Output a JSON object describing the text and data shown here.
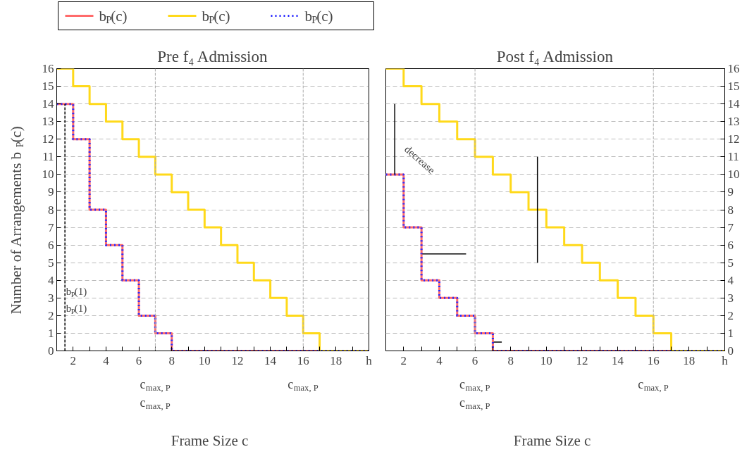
{
  "chart_data": [
    {
      "type": "step",
      "title": "Pre f₄ Admission",
      "xlabel": "Frame Size c",
      "ylabel": "Number of Arrangements b$_{P}$(c)",
      "x": [
        1,
        2,
        3,
        4,
        5,
        6,
        7,
        8,
        9,
        10,
        11,
        12,
        13,
        14,
        15,
        16,
        17,
        18,
        19,
        20
      ],
      "series": [
        {
          "name": "b$_{P}$(c)",
          "color": "#ff6b6b",
          "values": [
            14,
            12,
            8,
            6,
            4,
            2,
            1,
            0,
            0,
            0,
            0,
            0,
            0,
            0,
            0,
            0,
            0,
            0,
            null,
            null
          ]
        },
        {
          "name": "b$_{P}$(c)",
          "color": "#ffd91a",
          "values": [
            16,
            15,
            14,
            13,
            12,
            11,
            10,
            9,
            8,
            7,
            6,
            5,
            4,
            3,
            2,
            1,
            0,
            0,
            0,
            0
          ]
        },
        {
          "name": "b$_{P}$(c)",
          "color": "#2b2bff",
          "line_style": "dotted",
          "values": [
            14,
            12,
            8,
            6,
            4,
            2,
            1,
            0,
            0,
            0,
            0,
            0,
            0,
            0,
            0,
            0,
            0,
            0,
            0,
            0
          ]
        },
        {
          "type": "line",
          "color": "#000000",
          "line_style": "dashed",
          "x": [
            1.5,
            1.5
          ],
          "values": [
            0,
            14
          ]
        }
      ],
      "xlim": [
        1,
        20
      ],
      "ylim": [
        0,
        16
      ],
      "xticks": [
        {
          "value": 1,
          "label": null
        },
        2,
        {
          "value": 3,
          "label": null
        },
        4,
        {
          "value": 5,
          "label": null
        },
        6,
        {
          "value": 7,
          "label": null
        },
        8,
        {
          "value": 9,
          "label": null
        },
        10,
        {
          "value": 11,
          "label": null
        },
        12,
        {
          "value": 13,
          "label": null
        },
        14,
        {
          "value": 15,
          "label": null
        },
        16,
        {
          "value": 17,
          "label": null
        },
        18,
        {
          "value": 19,
          "label": null
        },
        {
          "value": 20,
          "label": "h"
        }
      ],
      "yticks": [
        0,
        1,
        2,
        3,
        4,
        5,
        6,
        7,
        8,
        9,
        10,
        11,
        12,
        13,
        14,
        15,
        16
      ],
      "grid": "y",
      "legend": "top left",
      "ref_lines": [
        {
          "axis": "x",
          "value": 7
        },
        {
          "axis": "x",
          "value": 16
        }
      ],
      "annotations": [
        "b$_{P}$(1)",
        "b$_{P}$(1)",
        "c$_{max, P}$",
        "c$_{max, P}$",
        "c$_{max, P}$"
      ]
    },
    {
      "type": "step",
      "title": "Post f₄ Admission",
      "xlabel": "Frame Size c",
      "x": [
        1,
        2,
        3,
        4,
        5,
        6,
        7,
        8,
        9,
        10,
        11,
        12,
        13,
        14,
        15,
        16,
        17,
        18,
        19,
        20
      ],
      "series": [
        {
          "color": "#ff6b6b",
          "values": [
            10,
            7,
            4,
            3,
            2,
            1,
            0,
            0,
            0,
            0,
            0,
            0,
            0,
            0,
            0,
            0,
            0,
            0,
            null,
            null
          ]
        },
        {
          "color": "#ffd91a",
          "values": [
            16,
            15,
            14,
            13,
            12,
            11,
            10,
            9,
            8,
            7,
            6,
            5,
            4,
            3,
            2,
            1,
            0,
            0,
            0,
            0
          ]
        },
        {
          "color": "#2b2bff",
          "line_style": "dotted",
          "values": [
            10,
            7,
            4,
            3,
            2,
            1,
            0,
            0,
            0,
            0,
            0,
            0,
            0,
            0,
            0,
            0,
            0,
            0,
            0,
            0
          ]
        },
        {
          "type": "line",
          "color": "#000000",
          "x": [
            1.5,
            1.5
          ],
          "values": [
            14,
            10
          ]
        },
        {
          "type": "line",
          "color": "#000000",
          "x": [
            5.5,
            3.05
          ],
          "values": [
            5.5,
            5.5
          ]
        },
        {
          "type": "line",
          "color": "#000000",
          "x": [
            7.5,
            7.05
          ],
          "values": [
            0.5,
            0.5
          ]
        },
        {
          "type": "line",
          "color": "#000000",
          "x": [
            9.5,
            9.5
          ],
          "values": [
            5,
            11
          ]
        }
      ],
      "xlim": [
        1,
        20
      ],
      "ylim": [
        0,
        16
      ],
      "xticks": [
        {
          "value": 1,
          "label": null
        },
        2,
        {
          "value": 3,
          "label": null
        },
        4,
        {
          "value": 5,
          "label": null
        },
        6,
        {
          "value": 7,
          "label": null
        },
        8,
        {
          "value": 9,
          "label": null
        },
        10,
        {
          "value": 11,
          "label": null
        },
        12,
        {
          "value": 13,
          "label": null
        },
        14,
        {
          "value": 15,
          "label": null
        },
        16,
        {
          "value": 17,
          "label": null
        },
        18,
        {
          "value": 19,
          "label": null
        },
        {
          "value": 20,
          "label": "h"
        }
      ],
      "yticks": [
        0,
        1,
        2,
        3,
        4,
        5,
        6,
        7,
        8,
        9,
        10,
        11,
        12,
        13,
        14,
        15,
        16
      ],
      "grid": "y",
      "ref_lines": [
        {
          "axis": "x",
          "value": 6
        },
        {
          "axis": "x",
          "value": 16
        }
      ],
      "annotations": [
        "decrease",
        "c$_{max, P}$",
        "c$_{max, P}$",
        "c$_{max, P}$"
      ]
    }
  ]
}
